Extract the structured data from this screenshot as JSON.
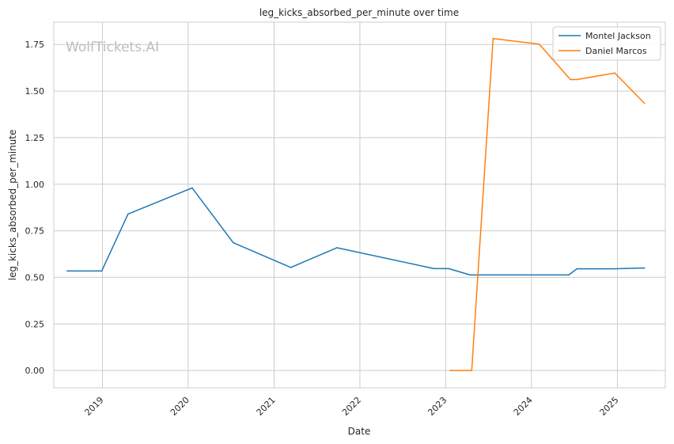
{
  "chart_data": {
    "type": "line",
    "title": "leg_kicks_absorbed_per_minute over time",
    "xlabel": "Date",
    "ylabel": "leg_kicks_absorbed_per_minute",
    "watermark": "WolfTickets.AI",
    "x_ticks": [
      "2019",
      "2020",
      "2021",
      "2022",
      "2023",
      "2024",
      "2025"
    ],
    "y_ticks": [
      "0.00",
      "0.25",
      "0.50",
      "0.75",
      "1.00",
      "1.25",
      "1.50",
      "1.75"
    ],
    "xlim": [
      "2018-06-08",
      "2025-07-24"
    ],
    "ylim": [
      -0.093,
      1.87
    ],
    "grid": true,
    "legend_position": "top-right",
    "series": [
      {
        "name": "Montel Jackson",
        "color": "#1f77b4",
        "points": [
          {
            "x": "2018-08-04",
            "y": 0.534
          },
          {
            "x": "2018-12-29",
            "y": 0.534
          },
          {
            "x": "2019-04-20",
            "y": 0.84
          },
          {
            "x": "2020-01-18",
            "y": 0.98
          },
          {
            "x": "2020-07-11",
            "y": 0.686
          },
          {
            "x": "2021-03-13",
            "y": 0.553
          },
          {
            "x": "2021-09-25",
            "y": 0.659
          },
          {
            "x": "2022-11-12",
            "y": 0.547
          },
          {
            "x": "2023-01-14",
            "y": 0.547
          },
          {
            "x": "2023-04-15",
            "y": 0.513
          },
          {
            "x": "2024-06-08",
            "y": 0.513
          },
          {
            "x": "2024-07-13",
            "y": 0.546
          },
          {
            "x": "2024-12-14",
            "y": 0.546
          },
          {
            "x": "2025-04-26",
            "y": 0.55
          }
        ]
      },
      {
        "name": "Daniel Marcos",
        "color": "#ff7f0e",
        "points": [
          {
            "x": "2023-01-21",
            "y": 0.0
          },
          {
            "x": "2023-04-22",
            "y": 0.0
          },
          {
            "x": "2023-07-22",
            "y": 1.782
          },
          {
            "x": "2024-02-03",
            "y": 1.752
          },
          {
            "x": "2024-06-15",
            "y": 1.562
          },
          {
            "x": "2024-07-13",
            "y": 1.562
          },
          {
            "x": "2024-12-21",
            "y": 1.597
          },
          {
            "x": "2025-04-26",
            "y": 1.435
          }
        ]
      }
    ]
  }
}
